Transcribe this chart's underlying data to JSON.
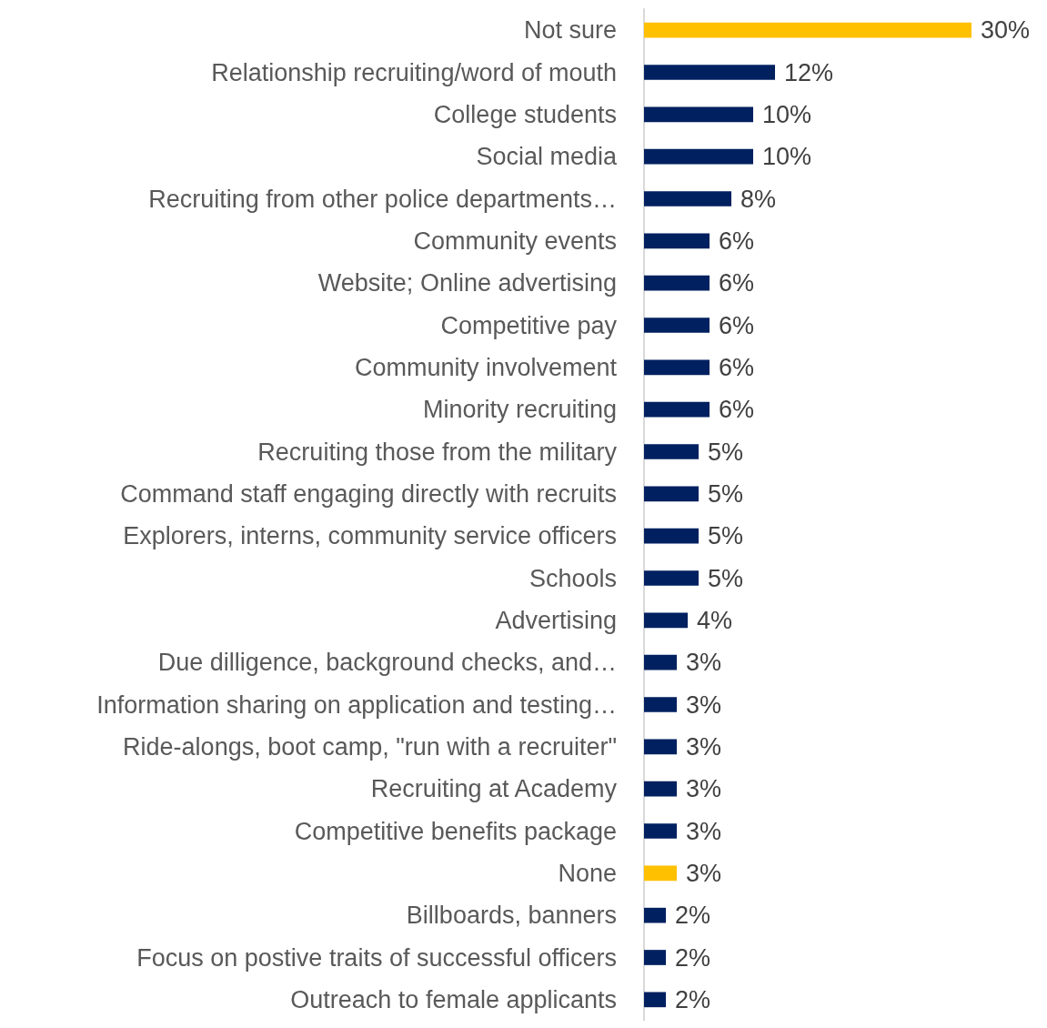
{
  "chart_data": {
    "type": "bar",
    "orientation": "horizontal",
    "categories": [
      "Not sure",
      "Relationship recruiting/word of mouth",
      "College students",
      "Social media",
      "Recruiting from other police departments…",
      "Community events",
      "Website; Online advertising",
      "Competitive pay",
      "Community involvement",
      "Minority recruiting",
      "Recruiting those from the military",
      "Command staff engaging directly with recruits",
      "Explorers, interns, community service officers",
      "Schools",
      "Advertising",
      "Due dilligence, background checks, and…",
      "Information sharing on application and testing…",
      "Ride-alongs, boot camp, \"run with a recruiter\"",
      "Recruiting at Academy",
      "Competitive benefits package",
      "None",
      "Billboards, banners",
      "Focus on postive traits of successful officers",
      "Outreach to female applicants"
    ],
    "values": [
      30,
      12,
      10,
      10,
      8,
      6,
      6,
      6,
      6,
      6,
      5,
      5,
      5,
      5,
      4,
      3,
      3,
      3,
      3,
      3,
      3,
      2,
      2,
      2
    ],
    "value_labels": [
      "30%",
      "12%",
      "10%",
      "10%",
      "8%",
      "6%",
      "6%",
      "6%",
      "6%",
      "6%",
      "5%",
      "5%",
      "5%",
      "5%",
      "4%",
      "3%",
      "3%",
      "3%",
      "3%",
      "3%",
      "3%",
      "2%",
      "2%",
      "2%"
    ],
    "colors": [
      "#ffc000",
      "#002060",
      "#002060",
      "#002060",
      "#002060",
      "#002060",
      "#002060",
      "#002060",
      "#002060",
      "#002060",
      "#002060",
      "#002060",
      "#002060",
      "#002060",
      "#002060",
      "#002060",
      "#002060",
      "#002060",
      "#002060",
      "#002060",
      "#ffc000",
      "#002060",
      "#002060",
      "#002060"
    ]
  }
}
